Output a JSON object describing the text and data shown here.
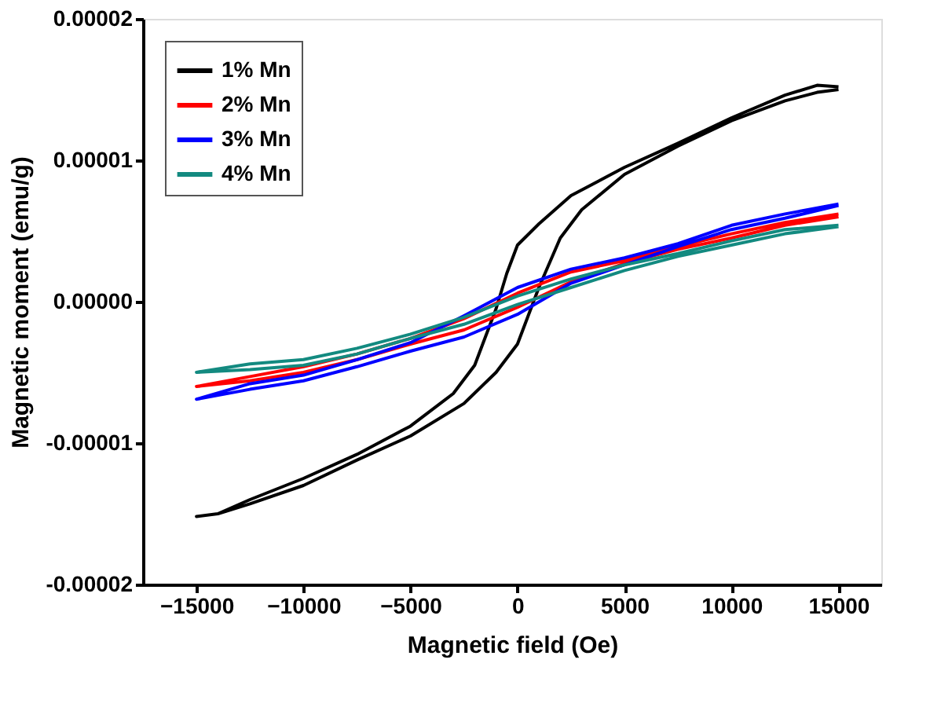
{
  "chart_data": {
    "type": "line",
    "xlabel": "Magnetic field (Oe)",
    "ylabel": "Magnetic moment (emu/g)",
    "xlim": [
      -17500,
      17000
    ],
    "xticks": [
      -15000,
      -10000,
      -5000,
      0,
      5000,
      10000,
      15000
    ],
    "ylim": [
      -2e-05,
      2e-05
    ],
    "yticks": [
      {
        "value": -2e-05,
        "label": "-0.00002"
      },
      {
        "value": -1e-05,
        "label": "-0.00001"
      },
      {
        "value": 0,
        "label": "0.00000"
      },
      {
        "value": 1e-05,
        "label": "0.00001"
      },
      {
        "value": 2e-05,
        "label": "0.00002"
      }
    ],
    "grid": false,
    "legend": "top left",
    "line_style": "solid",
    "marker": "none",
    "series": [
      {
        "name": "1% Mn",
        "color": "#000000",
        "x": [
          15000,
          14000,
          12500,
          10000,
          7500,
          5000,
          2500,
          1000,
          0,
          -500,
          -1000,
          -2000,
          -3000,
          -5000,
          -7500,
          -10000,
          -12500,
          -14000,
          -15000,
          -14000,
          -12500,
          -10000,
          -7500,
          -5000,
          -2500,
          -1000,
          0,
          500,
          1000,
          2000,
          3000,
          5000,
          7500,
          10000,
          12500,
          14000,
          15000
        ],
        "values": [
          1.52e-05,
          1.53e-05,
          1.46e-05,
          1.3e-05,
          1.12e-05,
          9.5e-06,
          7.5e-06,
          5.5e-06,
          4e-06,
          2e-06,
          -5e-07,
          -4.5e-06,
          -6.5e-06,
          -8.8e-06,
          -1.08e-05,
          -1.25e-05,
          -1.4e-05,
          -1.5e-05,
          -1.52e-05,
          -1.5e-05,
          -1.43e-05,
          -1.3e-05,
          -1.12e-05,
          -9.5e-06,
          -7.2e-06,
          -5e-06,
          -3e-06,
          -1e-06,
          1e-06,
          4.5e-06,
          6.5e-06,
          9e-06,
          1.1e-05,
          1.28e-05,
          1.42e-05,
          1.48e-05,
          1.5e-05
        ]
      },
      {
        "name": "2% Mn",
        "color": "#ff0000",
        "x": [
          15000,
          12500,
          10000,
          7500,
          5000,
          2500,
          0,
          -2500,
          -5000,
          -7500,
          -10000,
          -12500,
          -15000,
          -12500,
          -10000,
          -7500,
          -5000,
          -2500,
          0,
          2500,
          5000,
          7500,
          10000,
          12500,
          15000
        ],
        "values": [
          6.2e-06,
          5.6e-06,
          4.8e-06,
          3.9e-06,
          2.9e-06,
          2.1e-06,
          6e-07,
          -1.2e-06,
          -2.6e-06,
          -3.7e-06,
          -4.6e-06,
          -5.3e-06,
          -6e-06,
          -5.6e-06,
          -5e-06,
          -4.1e-06,
          -3e-06,
          -2e-06,
          -4e-07,
          1.4e-06,
          2.7e-06,
          3.7e-06,
          4.5e-06,
          5.4e-06,
          6e-06
        ]
      },
      {
        "name": "3% Mn",
        "color": "#0000ff",
        "x": [
          15000,
          12500,
          10000,
          7500,
          5000,
          2500,
          0,
          -2500,
          -5000,
          -7500,
          -10000,
          -12500,
          -15000,
          -12500,
          -10000,
          -7500,
          -5000,
          -2500,
          0,
          2500,
          5000,
          7500,
          10000,
          12500,
          15000
        ],
        "values": [
          6.9e-06,
          6.2e-06,
          5.4e-06,
          4.1e-06,
          3.1e-06,
          2.3e-06,
          1e-06,
          -1e-06,
          -2.9e-06,
          -4.1e-06,
          -5.2e-06,
          -5.8e-06,
          -6.9e-06,
          -6.2e-06,
          -5.6e-06,
          -4.6e-06,
          -3.5e-06,
          -2.5e-06,
          -9e-07,
          1.3e-06,
          2.6e-06,
          3.9e-06,
          5.1e-06,
          5.9e-06,
          6.8e-06
        ]
      },
      {
        "name": "4% Mn",
        "color": "#138a80",
        "x": [
          15000,
          12500,
          10000,
          7500,
          5000,
          2500,
          0,
          -2500,
          -5000,
          -7500,
          -10000,
          -12500,
          -15000,
          -12500,
          -10000,
          -7500,
          -5000,
          -2500,
          0,
          2500,
          5000,
          7500,
          10000,
          12500,
          15000
        ],
        "values": [
          5.4e-06,
          5.1e-06,
          4.3e-06,
          3.4e-06,
          2.6e-06,
          1.6e-06,
          4e-07,
          -1.1e-06,
          -2.3e-06,
          -3.3e-06,
          -4.1e-06,
          -4.4e-06,
          -5e-06,
          -4.8e-06,
          -4.5e-06,
          -3.7e-06,
          -2.6e-06,
          -1.6e-06,
          -2e-07,
          1e-06,
          2.2e-06,
          3.2e-06,
          4e-06,
          4.8e-06,
          5.3e-06
        ]
      }
    ]
  }
}
